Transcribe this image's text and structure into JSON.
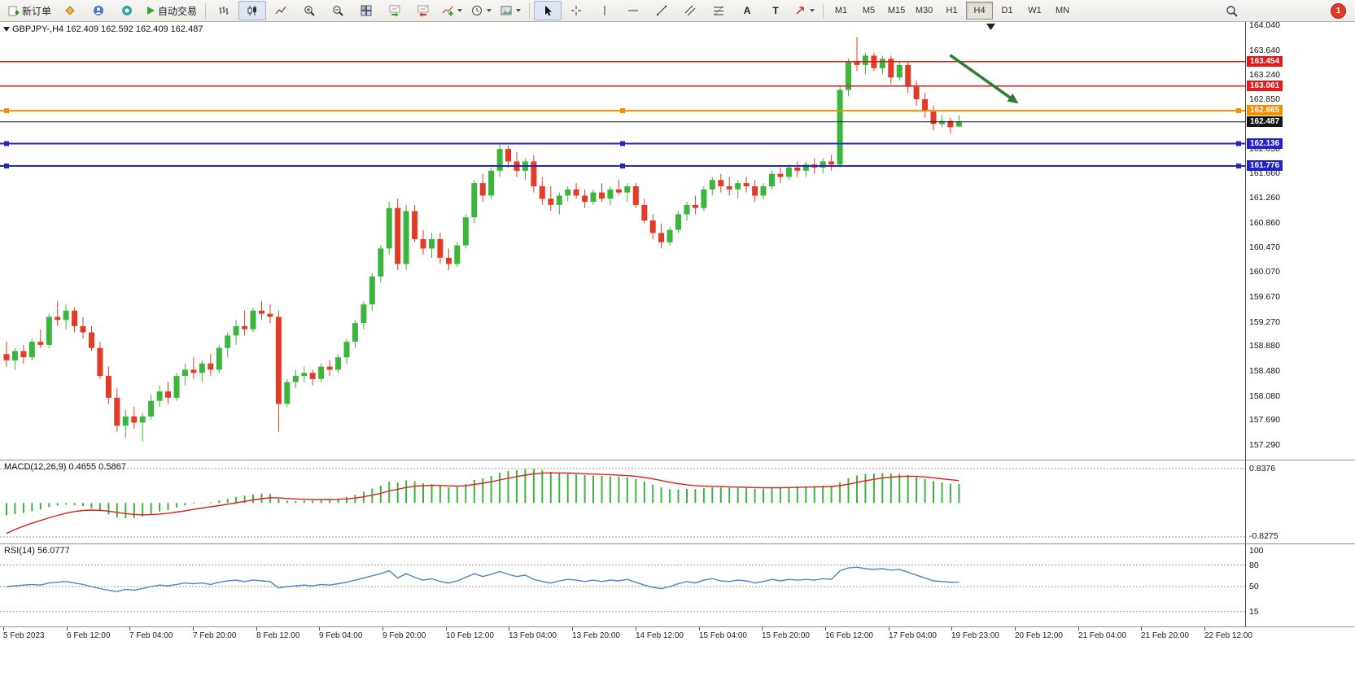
{
  "window": {
    "toolbar": {
      "new_order_label": "新订单",
      "autotrade_label": "自动交易",
      "text_tool_glyph": "A",
      "label_tool_glyph": "T",
      "timeframes": [
        "M1",
        "M5",
        "M15",
        "M30",
        "H1",
        "H4",
        "D1",
        "W1",
        "MN"
      ],
      "active_timeframe": "H4",
      "notification_count": "1"
    }
  },
  "chart_data": {
    "type": "candlestick",
    "symbol": "GBPJPY-",
    "timeframe": "H4",
    "quote_line": "GBPJPY-,H4 162.409 162.592 162.409 162.487",
    "ohlc_current": {
      "open": 162.409,
      "high": 162.592,
      "low": 162.409,
      "close": 162.487
    },
    "colors": {
      "up": "#3cb53c",
      "down": "#e23b26",
      "line_red": "#e01b1b",
      "line_orange": "#f39000",
      "line_blue": "#2323c8",
      "line_black": "#151515",
      "arrow_green": "#2e7d32",
      "macd_hist": "#3cb53c",
      "macd_signal": "#e02020",
      "rsi_line": "#4a86c8"
    },
    "price_axis_labels": [
      "164.040",
      "163.640",
      "163.240",
      "162.850",
      "162.050",
      "161.660",
      "161.260",
      "160.860",
      "160.470",
      "160.070",
      "159.670",
      "159.270",
      "158.880",
      "158.480",
      "158.080",
      "157.690",
      "157.290"
    ],
    "hlines": [
      {
        "price": 163.454,
        "label": "163.454",
        "color": "#e01b1b",
        "width": 1.5,
        "handles": false
      },
      {
        "price": 163.061,
        "label": "163.061",
        "color": "#e01b1b",
        "width": 1.5,
        "handles": false
      },
      {
        "price": 162.665,
        "label": "162.665",
        "color": "#f39000",
        "width": 2,
        "handles": true
      },
      {
        "price": 162.487,
        "label": "162.487",
        "color": "#151515",
        "width": 1,
        "handles": false
      },
      {
        "price": 162.136,
        "label": "162.136",
        "color": "#2323c8",
        "width": 2,
        "handles": true
      },
      {
        "price": 161.776,
        "label": "161.776",
        "color": "#2323c8",
        "width": 2,
        "handles": true
      }
    ],
    "arrow": {
      "x1_frac": 0.763,
      "price1": 163.56,
      "x2_frac": 0.818,
      "price2": 162.78
    },
    "time_labels": [
      "5 Feb 2023",
      "6 Feb 12:00",
      "7 Feb 04:00",
      "7 Feb 20:00",
      "8 Feb 12:00",
      "9 Feb 04:00",
      "9 Feb 20:00",
      "10 Feb 12:00",
      "13 Feb 04:00",
      "13 Feb 20:00",
      "14 Feb 12:00",
      "15 Feb 04:00",
      "15 Feb 20:00",
      "16 Feb 12:00",
      "17 Feb 04:00",
      "19 Feb 23:00",
      "20 Feb 12:00",
      "21 Feb 04:00",
      "21 Feb 20:00",
      "22 Feb 12:00"
    ],
    "candles": [
      [
        158.75,
        158.95,
        158.55,
        158.65
      ],
      [
        158.65,
        158.85,
        158.5,
        158.8
      ],
      [
        158.8,
        158.9,
        158.6,
        158.7
      ],
      [
        158.7,
        159.0,
        158.65,
        158.95
      ],
      [
        158.95,
        159.15,
        158.85,
        158.9
      ],
      [
        158.9,
        159.4,
        158.85,
        159.35
      ],
      [
        159.35,
        159.6,
        159.2,
        159.3
      ],
      [
        159.3,
        159.55,
        159.15,
        159.45
      ],
      [
        159.45,
        159.5,
        159.1,
        159.2
      ],
      [
        159.2,
        159.35,
        159.0,
        159.1
      ],
      [
        159.1,
        159.2,
        158.8,
        158.85
      ],
      [
        158.85,
        158.95,
        158.35,
        158.4
      ],
      [
        158.4,
        158.55,
        157.95,
        158.05
      ],
      [
        158.05,
        158.2,
        157.5,
        157.6
      ],
      [
        157.6,
        157.85,
        157.4,
        157.75
      ],
      [
        157.75,
        157.9,
        157.55,
        157.65
      ],
      [
        157.65,
        157.8,
        157.35,
        157.75
      ],
      [
        157.75,
        158.1,
        157.7,
        158.0
      ],
      [
        158.0,
        158.25,
        157.9,
        158.15
      ],
      [
        158.15,
        158.3,
        157.95,
        158.05
      ],
      [
        158.05,
        158.45,
        158.0,
        158.4
      ],
      [
        158.4,
        158.6,
        158.25,
        158.5
      ],
      [
        158.5,
        158.7,
        158.35,
        158.45
      ],
      [
        158.45,
        158.65,
        158.3,
        158.6
      ],
      [
        158.6,
        158.75,
        158.4,
        158.5
      ],
      [
        158.5,
        158.9,
        158.45,
        158.85
      ],
      [
        158.85,
        159.1,
        158.7,
        159.05
      ],
      [
        159.05,
        159.3,
        158.9,
        159.2
      ],
      [
        159.2,
        159.45,
        159.05,
        159.15
      ],
      [
        159.15,
        159.5,
        159.1,
        159.45
      ],
      [
        159.45,
        159.6,
        159.3,
        159.4
      ],
      [
        159.4,
        159.55,
        159.25,
        159.35
      ],
      [
        159.35,
        159.45,
        157.5,
        157.95
      ],
      [
        157.95,
        158.35,
        157.9,
        158.3
      ],
      [
        158.3,
        158.5,
        158.2,
        158.4
      ],
      [
        158.4,
        158.55,
        158.3,
        158.45
      ],
      [
        158.45,
        158.5,
        158.25,
        158.35
      ],
      [
        158.35,
        158.6,
        158.3,
        158.55
      ],
      [
        158.55,
        158.65,
        158.4,
        158.5
      ],
      [
        158.5,
        158.75,
        158.45,
        158.7
      ],
      [
        158.7,
        159.0,
        158.6,
        158.95
      ],
      [
        158.95,
        159.3,
        158.85,
        159.25
      ],
      [
        159.25,
        159.6,
        159.15,
        159.55
      ],
      [
        159.55,
        160.05,
        159.45,
        160.0
      ],
      [
        160.0,
        160.5,
        159.9,
        160.45
      ],
      [
        160.45,
        161.2,
        160.35,
        161.1
      ],
      [
        161.1,
        161.25,
        160.1,
        160.2
      ],
      [
        160.2,
        161.15,
        160.1,
        161.05
      ],
      [
        161.05,
        161.15,
        160.55,
        160.6
      ],
      [
        160.6,
        160.75,
        160.35,
        160.45
      ],
      [
        160.45,
        160.7,
        160.3,
        160.6
      ],
      [
        160.6,
        160.7,
        160.2,
        160.3
      ],
      [
        160.3,
        160.45,
        160.1,
        160.2
      ],
      [
        160.2,
        160.55,
        160.15,
        160.5
      ],
      [
        160.5,
        161.0,
        160.45,
        160.95
      ],
      [
        160.95,
        161.55,
        160.85,
        161.5
      ],
      [
        161.5,
        161.65,
        161.2,
        161.3
      ],
      [
        161.3,
        161.75,
        161.25,
        161.7
      ],
      [
        161.7,
        162.15,
        161.6,
        162.05
      ],
      [
        162.05,
        162.1,
        161.75,
        161.85
      ],
      [
        161.85,
        162.0,
        161.6,
        161.7
      ],
      [
        161.7,
        161.9,
        161.55,
        161.85
      ],
      [
        161.85,
        161.95,
        161.35,
        161.45
      ],
      [
        161.45,
        161.6,
        161.15,
        161.25
      ],
      [
        161.25,
        161.45,
        161.05,
        161.15
      ],
      [
        161.15,
        161.35,
        161.0,
        161.3
      ],
      [
        161.3,
        161.45,
        161.2,
        161.4
      ],
      [
        161.4,
        161.5,
        161.25,
        161.3
      ],
      [
        161.3,
        161.4,
        161.1,
        161.2
      ],
      [
        161.2,
        161.4,
        161.15,
        161.35
      ],
      [
        161.35,
        161.5,
        161.2,
        161.25
      ],
      [
        161.25,
        161.45,
        161.15,
        161.4
      ],
      [
        161.4,
        161.55,
        161.3,
        161.35
      ],
      [
        161.35,
        161.5,
        161.2,
        161.45
      ],
      [
        161.45,
        161.5,
        161.1,
        161.15
      ],
      [
        161.15,
        161.25,
        160.85,
        160.9
      ],
      [
        160.9,
        161.0,
        160.6,
        160.7
      ],
      [
        160.7,
        160.85,
        160.45,
        160.55
      ],
      [
        160.55,
        160.8,
        160.5,
        160.75
      ],
      [
        160.75,
        161.05,
        160.7,
        161.0
      ],
      [
        161.0,
        161.2,
        160.9,
        161.15
      ],
      [
        161.15,
        161.3,
        161.0,
        161.1
      ],
      [
        161.1,
        161.45,
        161.05,
        161.4
      ],
      [
        161.4,
        161.6,
        161.3,
        161.55
      ],
      [
        161.55,
        161.65,
        161.35,
        161.45
      ],
      [
        161.45,
        161.6,
        161.3,
        161.4
      ],
      [
        161.4,
        161.55,
        161.25,
        161.5
      ],
      [
        161.5,
        161.6,
        161.35,
        161.45
      ],
      [
        161.45,
        161.55,
        161.2,
        161.3
      ],
      [
        161.3,
        161.5,
        161.25,
        161.45
      ],
      [
        161.45,
        161.7,
        161.4,
        161.65
      ],
      [
        161.65,
        161.75,
        161.5,
        161.6
      ],
      [
        161.6,
        161.8,
        161.55,
        161.75
      ],
      [
        161.75,
        161.85,
        161.6,
        161.7
      ],
      [
        161.7,
        161.85,
        161.6,
        161.8
      ],
      [
        161.8,
        161.9,
        161.65,
        161.75
      ],
      [
        161.75,
        161.9,
        161.65,
        161.85
      ],
      [
        161.85,
        161.95,
        161.7,
        161.8
      ],
      [
        161.8,
        163.05,
        161.75,
        163.0
      ],
      [
        163.0,
        163.5,
        162.9,
        163.45
      ],
      [
        163.45,
        163.85,
        163.3,
        163.4
      ],
      [
        163.4,
        163.6,
        163.25,
        163.55
      ],
      [
        163.55,
        163.6,
        163.3,
        163.35
      ],
      [
        163.35,
        163.55,
        163.25,
        163.5
      ],
      [
        163.5,
        163.55,
        163.1,
        163.2
      ],
      [
        163.2,
        163.45,
        163.15,
        163.4
      ],
      [
        163.4,
        163.45,
        162.95,
        163.05
      ],
      [
        163.05,
        163.15,
        162.75,
        162.85
      ],
      [
        162.85,
        162.95,
        162.55,
        162.65
      ],
      [
        162.65,
        162.75,
        162.35,
        162.45
      ],
      [
        162.45,
        162.6,
        162.4,
        162.5
      ],
      [
        162.5,
        162.55,
        162.3,
        162.4
      ],
      [
        162.41,
        162.59,
        162.41,
        162.49
      ]
    ],
    "indicators": {
      "macd": {
        "label": "MACD(12,26,9) 0.4655 0.5867",
        "axis_top": "0.8376",
        "axis_bottom": "-0.8275",
        "values": [
          -0.3,
          -0.27,
          -0.24,
          -0.2,
          -0.16,
          -0.1,
          -0.06,
          -0.04,
          -0.05,
          -0.08,
          -0.13,
          -0.2,
          -0.28,
          -0.35,
          -0.37,
          -0.36,
          -0.33,
          -0.27,
          -0.21,
          -0.17,
          -0.11,
          -0.06,
          -0.02,
          0.01,
          0.02,
          0.06,
          0.1,
          0.15,
          0.18,
          0.21,
          0.23,
          0.22,
          0.1,
          0.06,
          0.05,
          0.06,
          0.06,
          0.08,
          0.09,
          0.11,
          0.15,
          0.2,
          0.27,
          0.35,
          0.42,
          0.52,
          0.5,
          0.55,
          0.53,
          0.48,
          0.46,
          0.42,
          0.38,
          0.4,
          0.46,
          0.56,
          0.6,
          0.66,
          0.74,
          0.78,
          0.8,
          0.82,
          0.83,
          0.8,
          0.76,
          0.73,
          0.71,
          0.7,
          0.68,
          0.67,
          0.66,
          0.65,
          0.64,
          0.63,
          0.58,
          0.52,
          0.45,
          0.38,
          0.34,
          0.33,
          0.34,
          0.34,
          0.36,
          0.38,
          0.38,
          0.37,
          0.37,
          0.36,
          0.35,
          0.35,
          0.37,
          0.38,
          0.39,
          0.4,
          0.41,
          0.41,
          0.42,
          0.42,
          0.5,
          0.6,
          0.67,
          0.71,
          0.72,
          0.73,
          0.72,
          0.71,
          0.68,
          0.63,
          0.58,
          0.53,
          0.5,
          0.47,
          0.4655
        ]
      },
      "rsi": {
        "label": "RSI(14) 56.0777",
        "axis_labels": [
          "100",
          "80",
          "50",
          "15"
        ],
        "levels": [
          80,
          50,
          15
        ],
        "values": [
          50,
          51,
          52,
          53,
          52,
          55,
          56,
          57,
          55,
          53,
          50,
          47,
          45,
          43,
          46,
          45,
          47,
          50,
          52,
          51,
          53,
          55,
          54,
          55,
          53,
          56,
          58,
          59,
          57,
          59,
          58,
          57,
          48,
          50,
          51,
          52,
          51,
          53,
          52,
          54,
          56,
          59,
          62,
          65,
          68,
          72,
          62,
          68,
          63,
          59,
          61,
          57,
          55,
          58,
          63,
          68,
          64,
          67,
          71,
          67,
          64,
          66,
          60,
          57,
          55,
          58,
          60,
          59,
          57,
          59,
          57,
          59,
          58,
          60,
          56,
          52,
          49,
          47,
          50,
          54,
          57,
          55,
          59,
          61,
          58,
          57,
          59,
          58,
          55,
          57,
          60,
          58,
          60,
          59,
          60,
          59,
          61,
          60,
          72,
          76,
          77,
          75,
          74,
          75,
          73,
          74,
          70,
          66,
          62,
          58,
          57,
          56,
          56.08
        ]
      }
    }
  }
}
